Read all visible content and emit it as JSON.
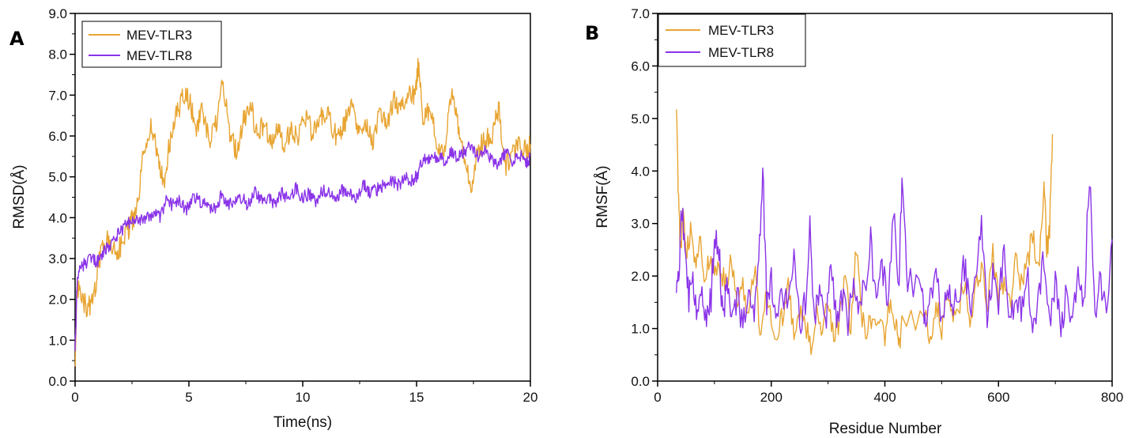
{
  "chart_data": [
    {
      "panel": "A",
      "type": "line",
      "xlabel": "Time(ns)",
      "ylabel": "RMSD(Å)",
      "xlim": [
        0,
        20
      ],
      "ylim": [
        0,
        9
      ],
      "xticks": [
        0,
        5,
        10,
        15,
        20
      ],
      "yticks": [
        "0.0",
        "1.0",
        "2.0",
        "3.0",
        "4.0",
        "5.0",
        "6.0",
        "7.0",
        "8.0",
        "9.0"
      ],
      "legend_position": "top-left",
      "series": [
        {
          "name": "MEV-TLR3",
          "color": "#E8A533",
          "x": [
            0,
            0.1,
            0.3,
            0.5,
            0.8,
            1.0,
            1.3,
            1.6,
            1.9,
            2.2,
            2.5,
            2.7,
            3.0,
            3.3,
            3.6,
            3.9,
            4.2,
            4.5,
            4.8,
            5.0,
            5.3,
            5.6,
            5.9,
            6.2,
            6.5,
            6.8,
            7.1,
            7.4,
            7.7,
            8.0,
            8.3,
            8.6,
            8.9,
            9.2,
            9.5,
            9.8,
            10.1,
            10.4,
            10.7,
            11.0,
            11.3,
            11.6,
            11.9,
            12.2,
            12.5,
            12.8,
            13.1,
            13.4,
            13.7,
            14.0,
            14.3,
            14.6,
            14.9,
            15.1,
            15.3,
            15.6,
            15.9,
            16.2,
            16.5,
            16.8,
            17.1,
            17.4,
            17.7,
            18.0,
            18.3,
            18.6,
            18.9,
            19.2,
            19.5,
            19.8,
            20.0
          ],
          "y": [
            0.5,
            2.3,
            2.0,
            1.8,
            1.9,
            2.8,
            3.5,
            3.3,
            3.2,
            3.6,
            3.9,
            4.1,
            5.5,
            6.3,
            5.6,
            4.8,
            6.0,
            6.6,
            7.0,
            6.9,
            6.2,
            6.6,
            5.8,
            6.3,
            7.3,
            6.1,
            5.6,
            6.4,
            6.8,
            6.0,
            6.3,
            5.9,
            6.1,
            5.8,
            6.2,
            6.0,
            6.5,
            6.1,
            6.3,
            6.6,
            6.2,
            5.9,
            6.4,
            6.7,
            6.0,
            6.3,
            5.8,
            6.6,
            6.2,
            6.9,
            6.6,
            7.1,
            7.0,
            7.8,
            6.4,
            6.6,
            5.8,
            5.4,
            7.0,
            6.4,
            5.5,
            4.6,
            5.7,
            5.9,
            6.0,
            6.7,
            5.2,
            5.6,
            5.9,
            5.6,
            5.8
          ]
        },
        {
          "name": "MEV-TLR8",
          "color": "#8A33E8",
          "x": [
            0,
            0.1,
            0.3,
            0.5,
            0.8,
            1.0,
            1.3,
            1.6,
            1.9,
            2.2,
            2.5,
            2.8,
            3.1,
            3.4,
            3.7,
            4.0,
            4.3,
            4.6,
            4.9,
            5.2,
            5.5,
            5.8,
            6.1,
            6.4,
            6.7,
            7.0,
            7.3,
            7.6,
            7.9,
            8.2,
            8.5,
            8.8,
            9.1,
            9.4,
            9.7,
            10.0,
            10.3,
            10.6,
            10.9,
            11.2,
            11.5,
            11.8,
            12.1,
            12.4,
            12.7,
            13.0,
            13.3,
            13.6,
            13.9,
            14.2,
            14.5,
            14.8,
            15.0,
            15.3,
            15.6,
            15.9,
            16.2,
            16.5,
            16.8,
            17.1,
            17.4,
            17.7,
            18.0,
            18.3,
            18.6,
            18.9,
            19.2,
            19.5,
            19.8,
            20.0
          ],
          "y": [
            0.8,
            2.6,
            2.8,
            2.9,
            3.0,
            2.9,
            3.2,
            3.4,
            3.6,
            3.8,
            3.9,
            3.9,
            4.0,
            4.1,
            4.0,
            4.4,
            4.3,
            4.4,
            4.2,
            4.5,
            4.4,
            4.3,
            4.2,
            4.5,
            4.3,
            4.4,
            4.5,
            4.3,
            4.6,
            4.4,
            4.5,
            4.3,
            4.6,
            4.4,
            4.7,
            4.5,
            4.6,
            4.4,
            4.7,
            4.6,
            4.5,
            4.7,
            4.6,
            4.5,
            4.8,
            4.6,
            4.7,
            4.8,
            4.9,
            4.8,
            5.0,
            4.9,
            5.0,
            5.5,
            5.4,
            5.5,
            5.4,
            5.6,
            5.5,
            5.6,
            5.8,
            5.5,
            5.7,
            5.4,
            5.3,
            5.6,
            5.4,
            5.6,
            5.3,
            5.5
          ]
        }
      ]
    },
    {
      "panel": "B",
      "type": "line",
      "xlabel": "Residue Number",
      "ylabel": "RMSF(Å)",
      "xlim": [
        0,
        800
      ],
      "ylim": [
        0,
        7
      ],
      "xticks": [
        0,
        200,
        400,
        600,
        800
      ],
      "yticks": [
        "0.0",
        "1.0",
        "2.0",
        "3.0",
        "4.0",
        "5.0",
        "6.0",
        "7.0"
      ],
      "legend_position": "top-left",
      "series": [
        {
          "name": "MEV-TLR3",
          "color": "#E8A533",
          "x": [
            33,
            36,
            40,
            45,
            50,
            58,
            66,
            74,
            82,
            90,
            100,
            110,
            120,
            130,
            140,
            150,
            160,
            170,
            180,
            190,
            200,
            210,
            220,
            230,
            240,
            250,
            260,
            270,
            280,
            290,
            300,
            310,
            320,
            330,
            340,
            350,
            360,
            370,
            380,
            390,
            400,
            410,
            420,
            425,
            430,
            470,
            480,
            490,
            500,
            510,
            520,
            530,
            540,
            550,
            560,
            570,
            580,
            590,
            600,
            610,
            620,
            630,
            640,
            650,
            660,
            670,
            680,
            685,
            690,
            695
          ],
          "y": [
            5.3,
            3.8,
            2.5,
            3.2,
            2.4,
            2.9,
            2.3,
            2.7,
            2.0,
            2.3,
            2.2,
            2.1,
            1.8,
            2.3,
            1.5,
            1.9,
            1.2,
            2.2,
            1.0,
            1.6,
            1.2,
            0.8,
            1.3,
            1.8,
            0.9,
            1.4,
            1.0,
            0.7,
            1.3,
            0.9,
            1.5,
            0.8,
            1.2,
            1.9,
            1.0,
            2.6,
            1.2,
            0.9,
            1.4,
            1.1,
            0.8,
            1.6,
            1.0,
            0.7,
            1.0,
            1.3,
            0.8,
            1.5,
            0.9,
            1.8,
            1.1,
            1.4,
            1.9,
            1.2,
            1.7,
            2.2,
            1.3,
            2.6,
            1.5,
            2.0,
            1.4,
            2.5,
            1.8,
            2.2,
            2.8,
            2.0,
            3.7,
            2.5,
            2.9,
            4.7
          ]
        },
        {
          "name": "MEV-TLR8",
          "color": "#8A33E8",
          "x": [
            33,
            38,
            42,
            48,
            55,
            62,
            70,
            78,
            86,
            94,
            100,
            108,
            115,
            122,
            130,
            140,
            150,
            160,
            170,
            178,
            185,
            192,
            200,
            210,
            220,
            230,
            240,
            250,
            260,
            268,
            276,
            285,
            295,
            305,
            315,
            325,
            335,
            345,
            355,
            365,
            375,
            385,
            395,
            405,
            415,
            425,
            430,
            440,
            465,
            470,
            480,
            490,
            500,
            510,
            520,
            530,
            540,
            550,
            560,
            570,
            580,
            590,
            600,
            610,
            620,
            630,
            640,
            650,
            660,
            670,
            680,
            690,
            700,
            710,
            720,
            730,
            740,
            750,
            760,
            770,
            780,
            790,
            800
          ],
          "y": [
            1.8,
            2.3,
            3.4,
            2.4,
            1.6,
            2.0,
            1.3,
            1.8,
            1.2,
            1.6,
            2.8,
            2.5,
            1.2,
            1.9,
            1.1,
            1.6,
            1.0,
            1.8,
            1.2,
            2.2,
            4.0,
            1.5,
            2.0,
            1.0,
            1.7,
            1.3,
            2.4,
            1.1,
            1.5,
            2.9,
            1.2,
            1.8,
            1.0,
            2.1,
            1.3,
            1.6,
            1.1,
            2.0,
            1.4,
            1.8,
            2.8,
            1.3,
            2.2,
            1.6,
            3.2,
            1.8,
            3.9,
            1.9,
            1.9,
            1.2,
            1.5,
            2.3,
            1.0,
            2.0,
            1.3,
            1.7,
            2.2,
            1.4,
            1.8,
            2.9,
            1.2,
            2.0,
            1.5,
            2.6,
            1.1,
            1.7,
            1.3,
            2.1,
            1.0,
            1.6,
            2.4,
            1.2,
            1.9,
            0.9,
            1.7,
            1.2,
            2.0,
            1.3,
            4.0,
            1.4,
            1.9,
            1.2,
            2.7
          ]
        }
      ]
    }
  ]
}
